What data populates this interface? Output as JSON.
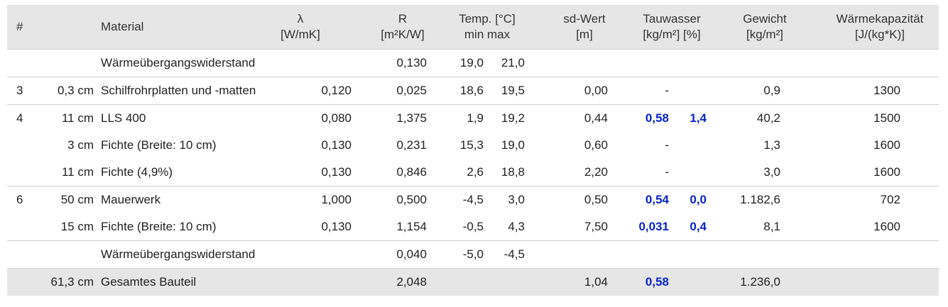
{
  "headers": {
    "num": "#",
    "material": "Material",
    "lambda": [
      "λ",
      "[W/mK]"
    ],
    "r": [
      "R",
      "[m²K/W]"
    ],
    "temp": [
      "Temp. [°C]",
      "min max"
    ],
    "sd": [
      "sd-Wert",
      "[m]"
    ],
    "tau": [
      "Tauwasser",
      "[kg/m²] [%]"
    ],
    "weight": [
      "Gewicht",
      "[kg/m²]"
    ],
    "cap": [
      "Wärmekapazität",
      "[J/(kg*K)]"
    ]
  },
  "rows": [
    {
      "num": "",
      "thick": "",
      "material": "Wärmeübergangswiderstand",
      "lambda": "",
      "r": "0,130",
      "tmin": "19,0",
      "tmax": "21,0",
      "sd": "",
      "tau_kg": "",
      "tau_pct": "",
      "weight": "",
      "cap": "",
      "group_start": true
    },
    {
      "num": "3",
      "thick": "0,3 cm",
      "material": "Schilfrohrplatten und -matten",
      "lambda": "0,120",
      "r": "0,025",
      "tmin": "18,6",
      "tmax": "19,5",
      "sd": "0,00",
      "tau_kg": "-",
      "tau_pct": "",
      "weight": "0,9",
      "cap": "1300",
      "group_start": true,
      "blue": false
    },
    {
      "num": "4",
      "thick": "11 cm",
      "material": "LLS 400",
      "lambda": "0,080",
      "r": "1,375",
      "tmin": "1,9",
      "tmax": "19,2",
      "sd": "0,44",
      "tau_kg": "0,58",
      "tau_pct": "1,4",
      "weight": "40,2",
      "cap": "1500",
      "group_start": true,
      "blue": true
    },
    {
      "num": "",
      "thick": "3 cm",
      "material": "Fichte (Breite: 10 cm)",
      "lambda": "0,130",
      "r": "0,231",
      "tmin": "15,3",
      "tmax": "19,0",
      "sd": "0,60",
      "tau_kg": "-",
      "tau_pct": "",
      "weight": "1,3",
      "cap": "1600",
      "group_start": false,
      "blue": false
    },
    {
      "num": "",
      "thick": "11 cm",
      "material": "Fichte (4,9%)",
      "lambda": "0,130",
      "r": "0,846",
      "tmin": "2,6",
      "tmax": "18,8",
      "sd": "2,20",
      "tau_kg": "-",
      "tau_pct": "",
      "weight": "3,0",
      "cap": "1600",
      "group_start": false,
      "blue": false
    },
    {
      "num": "6",
      "thick": "50 cm",
      "material": "Mauerwerk",
      "lambda": "1,000",
      "r": "0,500",
      "tmin": "-4,5",
      "tmax": "3,0",
      "sd": "0,50",
      "tau_kg": "0,54",
      "tau_pct": "0,0",
      "weight": "1.182,6",
      "cap": "702",
      "group_start": true,
      "blue": true
    },
    {
      "num": "",
      "thick": "15 cm",
      "material": "Fichte (Breite: 10 cm)",
      "lambda": "0,130",
      "r": "1,154",
      "tmin": "-0,5",
      "tmax": "4,3",
      "sd": "7,50",
      "tau_kg": "0,031",
      "tau_pct": "0,4",
      "weight": "8,1",
      "cap": "1600",
      "group_start": false,
      "blue": true
    },
    {
      "num": "",
      "thick": "",
      "material": "Wärmeübergangswiderstand",
      "lambda": "",
      "r": "0,040",
      "tmin": "-5,0",
      "tmax": "-4,5",
      "sd": "",
      "tau_kg": "",
      "tau_pct": "",
      "weight": "",
      "cap": "",
      "group_start": true,
      "blue": false
    }
  ],
  "total": {
    "thick": "61,3 cm",
    "material": "Gesamtes Bauteil",
    "r": "2,048",
    "sd": "1,04",
    "tau_kg": "0,58",
    "weight": "1.236,0"
  },
  "colors": {
    "header_bg": "#e6e6e6",
    "condensate_blue": "#0a23c8",
    "border": "#cfcfcf"
  }
}
